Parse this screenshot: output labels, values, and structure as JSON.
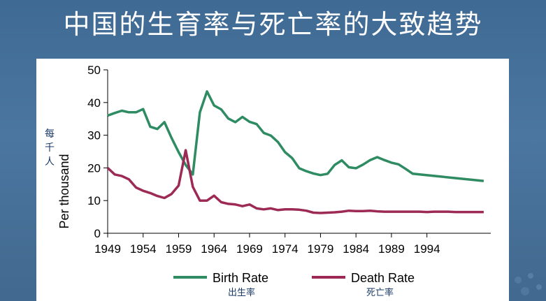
{
  "title": "中国的生育率与死亡率的大致趋势",
  "chart_data": {
    "type": "line",
    "ylabel": "Per thousand",
    "ylabel_cn": "每千人",
    "xlim": [
      1949,
      2003
    ],
    "ylim": [
      0,
      50
    ],
    "y_ticks": [
      0,
      10,
      20,
      30,
      40,
      50
    ],
    "x_ticks": [
      1949,
      1954,
      1959,
      1964,
      1969,
      1974,
      1979,
      1984,
      1989,
      1994
    ],
    "grid": false,
    "legend_position": "bottom",
    "series": [
      {
        "name": "Birth Rate",
        "name_cn": "出生率",
        "color": "#2e8b62",
        "x": [
          1949,
          1950,
          1951,
          1952,
          1953,
          1954,
          1955,
          1956,
          1957,
          1958,
          1959,
          1960,
          1961,
          1962,
          1963,
          1964,
          1965,
          1966,
          1967,
          1968,
          1969,
          1970,
          1971,
          1972,
          1973,
          1974,
          1975,
          1976,
          1977,
          1978,
          1979,
          1980,
          1981,
          1982,
          1983,
          1984,
          1985,
          1986,
          1987,
          1988,
          1989,
          1990,
          1991,
          1992,
          1993,
          1994,
          1995,
          1996,
          1997,
          1998,
          1999,
          2000
        ],
        "values": [
          36,
          36.8,
          37.5,
          37,
          37,
          38,
          32.6,
          31.9,
          34,
          29.2,
          24.8,
          20.9,
          18,
          37,
          43.4,
          39.1,
          37.9,
          35.1,
          34,
          35.6,
          34.1,
          33.4,
          30.7,
          29.9,
          27.9,
          24.8,
          23,
          19.9,
          19,
          18.3,
          17.8,
          18.2,
          20.9,
          22.3,
          20.2,
          19.9,
          21,
          22.4,
          23.3,
          22.4,
          21.6,
          21.1,
          19.7,
          18.2,
          18,
          17.7,
          17.1,
          16.98,
          16.57,
          16.03,
          15.23,
          14.03
        ],
        "display_end": 2002
      },
      {
        "name": "Death Rate",
        "name_cn": "死亡率",
        "color": "#9c2a55",
        "x": [
          1949,
          1950,
          1951,
          1952,
          1953,
          1954,
          1955,
          1956,
          1957,
          1958,
          1959,
          1960,
          1961,
          1962,
          1963,
          1964,
          1965,
          1966,
          1967,
          1968,
          1969,
          1970,
          1971,
          1972,
          1973,
          1974,
          1975,
          1976,
          1977,
          1978,
          1979,
          1980,
          1981,
          1982,
          1983,
          1984,
          1985,
          1986,
          1987,
          1988,
          1989,
          1990,
          1991,
          1992,
          1993,
          1994,
          1995,
          1996,
          1997,
          1998,
          1999,
          2000,
          2002
        ],
        "values": [
          20,
          18,
          17.5,
          16.5,
          14,
          13,
          12.3,
          11.4,
          10.8,
          12,
          14.6,
          25.4,
          14.2,
          10,
          10,
          11.5,
          9.5,
          9,
          8.8,
          8.3,
          8.8,
          7.6,
          7.3,
          7.6,
          7.1,
          7.3,
          7.3,
          7.2,
          6.9,
          6.3,
          6.2,
          6.3,
          6.4,
          6.6,
          6.9,
          6.8,
          6.8,
          6.9,
          6.7,
          6.6,
          6.6,
          6.6,
          6.6,
          6.6,
          6.6,
          6.5,
          6.6,
          6.6,
          6.6,
          6.5,
          6.5,
          6.5,
          6.5
        ]
      }
    ]
  }
}
